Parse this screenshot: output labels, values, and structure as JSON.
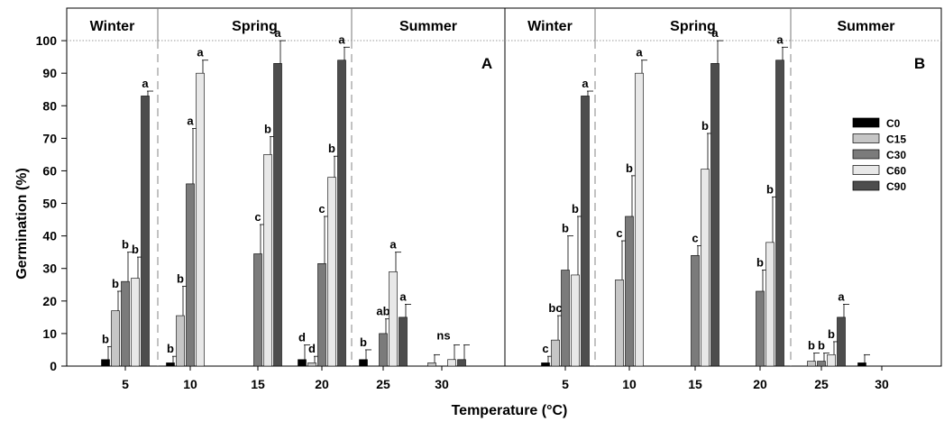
{
  "chart_data": {
    "type": "bar",
    "ylabel": "Germination (%)",
    "xlabel": "Temperature (°C)",
    "ylim": [
      0,
      110
    ],
    "y_ticks": [
      0,
      10,
      20,
      30,
      40,
      50,
      60,
      70,
      80,
      90,
      100
    ],
    "categories": [
      "5",
      "10",
      "15",
      "20",
      "25",
      "30"
    ],
    "seasons": [
      {
        "label": "Winter",
        "categories": [
          "5"
        ]
      },
      {
        "label": "Spring",
        "categories": [
          "10",
          "15",
          "20"
        ]
      },
      {
        "label": "Summer",
        "categories": [
          "25",
          "30"
        ]
      }
    ],
    "legend": {
      "placement": "right",
      "items": [
        {
          "name": "C0",
          "color": "#000000"
        },
        {
          "name": "C15",
          "color": "#c6c6c6"
        },
        {
          "name": "C30",
          "color": "#7b7b7b"
        },
        {
          "name": "C60",
          "color": "#e8e8e8"
        },
        {
          "name": "C90",
          "color": "#4d4d4d"
        }
      ]
    },
    "panels": [
      {
        "label": "A",
        "groups": [
          {
            "category": "5",
            "values": [
              2,
              17,
              26,
              27,
              83
            ],
            "errors": [
              4,
              6,
              9,
              6.5,
              1.5
            ],
            "letters": [
              "b",
              "b",
              "b",
              "b",
              "a"
            ],
            "group_label": ""
          },
          {
            "category": "10",
            "values": [
              1,
              15.5,
              56,
              90,
              0
            ],
            "errors": [
              2,
              9,
              17,
              4,
              0
            ],
            "letters": [
              "b",
              "b",
              "a",
              "a",
              ""
            ],
            "group_label": ""
          },
          {
            "category": "15",
            "values": [
              0,
              0,
              34.5,
              65,
              93
            ],
            "errors": [
              0,
              0,
              9,
              5.5,
              7
            ],
            "letters": [
              "",
              "",
              "c",
              "b",
              "a"
            ],
            "group_label": ""
          },
          {
            "category": "20",
            "values": [
              2,
              1,
              31.5,
              58,
              94
            ],
            "errors": [
              4.5,
              2,
              14.5,
              6.5,
              4
            ],
            "letters": [
              "d",
              "d",
              "c",
              "b",
              "a"
            ],
            "group_label": ""
          },
          {
            "category": "25",
            "values": [
              2,
              0,
              10,
              29,
              15
            ],
            "errors": [
              3,
              0,
              4.5,
              6,
              4
            ],
            "letters": [
              "b",
              "",
              "ab",
              "a",
              "a"
            ],
            "group_label": ""
          },
          {
            "category": "30",
            "values": [
              0,
              1,
              0,
              2,
              2
            ],
            "errors": [
              0,
              2.5,
              0,
              4.5,
              4.5
            ],
            "letters": [
              "",
              "",
              "",
              "",
              ""
            ],
            "group_label": "ns"
          }
        ]
      },
      {
        "label": "B",
        "groups": [
          {
            "category": "5",
            "values": [
              1,
              8,
              29.5,
              28,
              83
            ],
            "errors": [
              2,
              7.5,
              10.5,
              18,
              1.5
            ],
            "letters": [
              "c",
              "bc",
              "b",
              "b",
              "a"
            ],
            "group_label": ""
          },
          {
            "category": "10",
            "values": [
              0,
              26.5,
              46,
              90,
              0
            ],
            "errors": [
              0,
              12,
              12.5,
              4,
              0
            ],
            "letters": [
              "",
              "c",
              "b",
              "a",
              ""
            ],
            "group_label": ""
          },
          {
            "category": "15",
            "values": [
              0,
              0,
              34,
              60.5,
              93
            ],
            "errors": [
              0,
              0,
              3,
              11,
              7
            ],
            "letters": [
              "",
              "",
              "c",
              "b",
              "a"
            ],
            "group_label": ""
          },
          {
            "category": "20",
            "values": [
              0,
              0,
              23,
              38,
              94
            ],
            "errors": [
              0,
              0,
              6.5,
              14,
              4
            ],
            "letters": [
              "",
              "",
              "b",
              "b",
              "a"
            ],
            "group_label": ""
          },
          {
            "category": "25",
            "values": [
              0,
              1.5,
              1.5,
              3.5,
              15
            ],
            "errors": [
              0,
              2.5,
              2.5,
              4,
              4
            ],
            "letters": [
              "",
              "b",
              "b",
              "b",
              "a"
            ],
            "group_label": ""
          },
          {
            "category": "30",
            "values": [
              1,
              0,
              0,
              0,
              0
            ],
            "errors": [
              2.5,
              0,
              0,
              0,
              0
            ],
            "letters": [
              "",
              "",
              "",
              "",
              ""
            ],
            "group_label": ""
          }
        ]
      }
    ]
  }
}
